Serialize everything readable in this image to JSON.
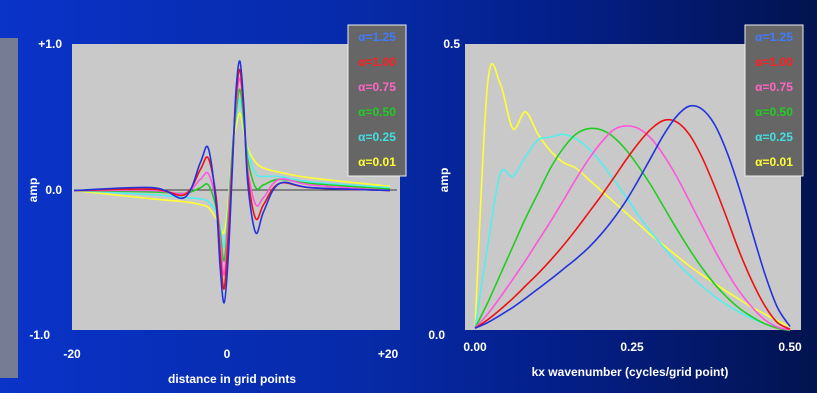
{
  "colors": {
    "background": "#0a2bb5",
    "plot_area": "#c8c8c8",
    "legend_box": "#666666",
    "axis_text": "#ffffff",
    "series": [
      "#3d7bff",
      "#ff1f1f",
      "#ff66c4",
      "#22cc22",
      "#44e0e0",
      "#ffff33"
    ],
    "series_plot": [
      "#2233dd",
      "#ee1111",
      "#ff55dd",
      "#22cc22",
      "#55eeee",
      "#ffff33"
    ]
  },
  "chart_data": [
    {
      "type": "line",
      "title": "",
      "xlabel": "distance in grid points",
      "ylabel": "amp",
      "xlim": [
        -20,
        20
      ],
      "ylim": [
        -1.0,
        1.0
      ],
      "x_tick_labels": [
        "-20",
        "0",
        "+20"
      ],
      "y_tick_labels": [
        "+1.0",
        "0.0",
        "-1.0"
      ],
      "grid": false,
      "legend": {
        "placement": "top-right",
        "entries": [
          "α=1.25",
          "α=1.00",
          "α=0.75",
          "α=0.50",
          "α=0.25",
          "α=0.01"
        ]
      },
      "x": [
        -20,
        -10,
        -6,
        -4,
        -3,
        -2,
        -1.5,
        -1,
        -0.5,
        0,
        0.5,
        1,
        1.5,
        2,
        3,
        4,
        6,
        10,
        20
      ],
      "series": [
        {
          "name": "α=1.25",
          "values": [
            0,
            0.02,
            -0.05,
            0.2,
            0.3,
            -0.1,
            -0.55,
            -0.8,
            -0.5,
            0.1,
            0.7,
            0.92,
            0.6,
            0.05,
            -0.3,
            -0.15,
            0.05,
            0.02,
            0
          ]
        },
        {
          "name": "α=1.00",
          "values": [
            0,
            0.01,
            -0.03,
            0.15,
            0.23,
            -0.05,
            -0.45,
            -0.7,
            -0.35,
            0.15,
            0.65,
            0.86,
            0.55,
            0.1,
            -0.2,
            -0.1,
            0.05,
            0.02,
            0
          ]
        },
        {
          "name": "α=0.75",
          "values": [
            0,
            0,
            -0.02,
            0.08,
            0.12,
            -0.08,
            -0.35,
            -0.6,
            -0.25,
            0.2,
            0.6,
            0.8,
            0.55,
            0.15,
            -0.1,
            -0.05,
            0.08,
            0.04,
            0
          ]
        },
        {
          "name": "α=0.50",
          "values": [
            0,
            -0.01,
            -0.02,
            0.02,
            0.04,
            -0.12,
            -0.3,
            -0.5,
            -0.2,
            0.25,
            0.55,
            0.72,
            0.5,
            0.22,
            0.02,
            0.04,
            0.08,
            0.05,
            0.01
          ]
        },
        {
          "name": "α=0.25",
          "values": [
            0,
            -0.03,
            -0.05,
            -0.06,
            -0.08,
            -0.15,
            -0.25,
            -0.4,
            -0.15,
            0.28,
            0.5,
            0.65,
            0.45,
            0.28,
            0.12,
            0.1,
            0.1,
            0.06,
            0.02
          ]
        },
        {
          "name": "α=0.01",
          "values": [
            0,
            -0.06,
            -0.08,
            -0.1,
            -0.12,
            -0.2,
            -0.25,
            -0.3,
            -0.1,
            0.3,
            0.45,
            0.55,
            0.42,
            0.3,
            0.2,
            0.16,
            0.13,
            0.09,
            0.03
          ]
        }
      ]
    },
    {
      "type": "line",
      "title": "",
      "xlabel": "kx wavenumber (cycles/grid point)",
      "ylabel": "amp",
      "xlim": [
        0,
        0.5
      ],
      "ylim": [
        0,
        0.5
      ],
      "x_tick_labels": [
        "0.00",
        "0.25",
        "0.50"
      ],
      "y_tick_labels": [
        "0.5",
        "0.0"
      ],
      "grid": false,
      "legend": {
        "placement": "top-right",
        "entries": [
          "α=1.25",
          "α=1.00",
          "α=0.75",
          "α=0.50",
          "α=0.25",
          "α=0.01"
        ]
      },
      "x": [
        0,
        0.02,
        0.04,
        0.06,
        0.08,
        0.1,
        0.12,
        0.14,
        0.16,
        0.18,
        0.2,
        0.22,
        0.24,
        0.26,
        0.28,
        0.3,
        0.32,
        0.34,
        0.36,
        0.38,
        0.4,
        0.42,
        0.44,
        0.46,
        0.48,
        0.5
      ],
      "series": [
        {
          "name": "α=1.25",
          "values": [
            0.005,
            0.015,
            0.028,
            0.042,
            0.058,
            0.075,
            0.092,
            0.11,
            0.128,
            0.148,
            0.172,
            0.2,
            0.232,
            0.27,
            0.31,
            0.35,
            0.382,
            0.4,
            0.395,
            0.368,
            0.318,
            0.252,
            0.176,
            0.102,
            0.042,
            0.008
          ]
        },
        {
          "name": "α=1.00",
          "values": [
            0.005,
            0.02,
            0.038,
            0.058,
            0.08,
            0.102,
            0.126,
            0.152,
            0.18,
            0.21,
            0.24,
            0.272,
            0.305,
            0.335,
            0.36,
            0.375,
            0.372,
            0.35,
            0.31,
            0.258,
            0.2,
            0.14,
            0.088,
            0.045,
            0.015,
            0.003
          ]
        },
        {
          "name": "α=0.75",
          "values": [
            0.005,
            0.03,
            0.06,
            0.092,
            0.125,
            0.16,
            0.195,
            0.232,
            0.27,
            0.305,
            0.335,
            0.358,
            0.365,
            0.36,
            0.342,
            0.312,
            0.275,
            0.232,
            0.188,
            0.145,
            0.105,
            0.07,
            0.042,
            0.02,
            0.007,
            0.002
          ]
        },
        {
          "name": "α=0.50",
          "values": [
            0.005,
            0.05,
            0.1,
            0.15,
            0.2,
            0.245,
            0.29,
            0.325,
            0.35,
            0.36,
            0.358,
            0.345,
            0.322,
            0.292,
            0.258,
            0.22,
            0.182,
            0.146,
            0.113,
            0.084,
            0.06,
            0.04,
            0.025,
            0.013,
            0.005,
            0.001
          ]
        },
        {
          "name": "α=0.25",
          "values": [
            0.005,
            0.15,
            0.28,
            0.275,
            0.31,
            0.34,
            0.345,
            0.35,
            0.342,
            0.325,
            0.3,
            0.27,
            0.238,
            0.205,
            0.175,
            0.148,
            0.122,
            0.1,
            0.08,
            0.062,
            0.046,
            0.033,
            0.022,
            0.013,
            0.006,
            0.002
          ]
        },
        {
          "name": "α=0.01",
          "values": [
            0.005,
            0.44,
            0.44,
            0.36,
            0.39,
            0.35,
            0.32,
            0.3,
            0.29,
            0.27,
            0.25,
            0.23,
            0.21,
            0.19,
            0.17,
            0.152,
            0.134,
            0.116,
            0.1,
            0.085,
            0.07,
            0.056,
            0.042,
            0.03,
            0.018,
            0.008
          ]
        }
      ]
    }
  ]
}
